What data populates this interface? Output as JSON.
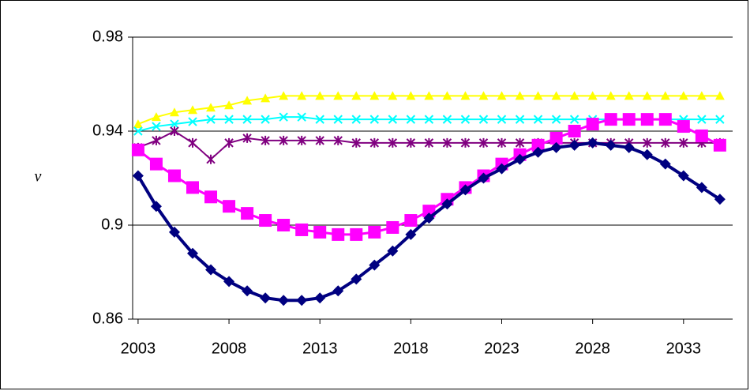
{
  "chart_data": {
    "type": "line",
    "y_label": "v",
    "x": [
      2003,
      2004,
      2005,
      2006,
      2007,
      2008,
      2009,
      2010,
      2011,
      2012,
      2013,
      2014,
      2015,
      2016,
      2017,
      2018,
      2019,
      2020,
      2021,
      2022,
      2023,
      2024,
      2025,
      2026,
      2027,
      2028,
      2029,
      2030,
      2031,
      2032,
      2033,
      2034,
      2035
    ],
    "xlim": [
      2002.7,
      2035.7
    ],
    "xticks": [
      2003,
      2008,
      2013,
      2018,
      2023,
      2028,
      2033
    ],
    "ylim": [
      0.86,
      0.98
    ],
    "yticks": [
      0.86,
      0.9,
      0.94,
      0.98
    ],
    "grid": true,
    "series": [
      {
        "color": "#ffff00",
        "marker": "triangle",
        "values": [
          0.943,
          0.946,
          0.948,
          0.949,
          0.95,
          0.951,
          0.953,
          0.954,
          0.955,
          0.955,
          0.955,
          0.955,
          0.955,
          0.955,
          0.955,
          0.955,
          0.955,
          0.955,
          0.955,
          0.955,
          0.955,
          0.955,
          0.955,
          0.955,
          0.955,
          0.955,
          0.955,
          0.955,
          0.955,
          0.955,
          0.955,
          0.955,
          0.955
        ]
      },
      {
        "color": "#00ffff",
        "marker": "x",
        "values": [
          0.94,
          0.942,
          0.943,
          0.944,
          0.945,
          0.945,
          0.945,
          0.945,
          0.946,
          0.946,
          0.945,
          0.945,
          0.945,
          0.945,
          0.945,
          0.945,
          0.945,
          0.945,
          0.945,
          0.945,
          0.945,
          0.945,
          0.945,
          0.945,
          0.945,
          0.945,
          0.945,
          0.945,
          0.945,
          0.945,
          0.945,
          0.945,
          0.945
        ]
      },
      {
        "color": "#800080",
        "marker": "star",
        "values": [
          0.933,
          0.936,
          0.94,
          0.935,
          0.928,
          0.935,
          0.937,
          0.936,
          0.936,
          0.936,
          0.936,
          0.936,
          0.935,
          0.935,
          0.935,
          0.935,
          0.935,
          0.935,
          0.935,
          0.935,
          0.935,
          0.935,
          0.935,
          0.935,
          0.935,
          0.935,
          0.935,
          0.935,
          0.935,
          0.935,
          0.935,
          0.935,
          0.935
        ]
      },
      {
        "color": "#ff00ff",
        "marker": "square",
        "values": [
          0.932,
          0.926,
          0.921,
          0.916,
          0.912,
          0.908,
          0.905,
          0.902,
          0.9,
          0.898,
          0.897,
          0.896,
          0.896,
          0.897,
          0.899,
          0.902,
          0.906,
          0.911,
          0.916,
          0.921,
          0.926,
          0.93,
          0.934,
          0.937,
          0.94,
          0.943,
          0.945,
          0.945,
          0.945,
          0.945,
          0.942,
          0.938,
          0.934
        ]
      },
      {
        "color": "#000080",
        "marker": "diamond",
        "values": [
          0.921,
          0.908,
          0.897,
          0.888,
          0.881,
          0.876,
          0.872,
          0.869,
          0.868,
          0.868,
          0.869,
          0.872,
          0.877,
          0.883,
          0.889,
          0.896,
          0.903,
          0.909,
          0.915,
          0.92,
          0.924,
          0.928,
          0.931,
          0.933,
          0.934,
          0.935,
          0.934,
          0.933,
          0.93,
          0.926,
          0.921,
          0.916,
          0.911
        ]
      }
    ]
  }
}
